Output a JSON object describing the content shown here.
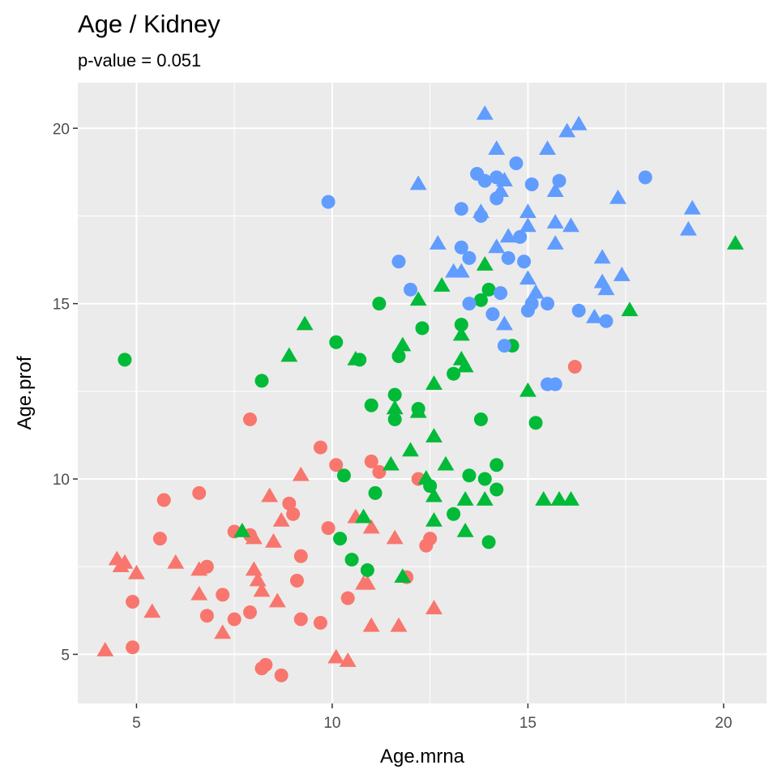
{
  "chart_data": {
    "type": "scatter",
    "title": "Age / Kidney",
    "subtitle": "p-value = 0.051",
    "xlabel": "Age.mrna",
    "ylabel": "Age.prof",
    "xlim": [
      3.5,
      21.1
    ],
    "ylim": [
      3.6,
      21.3
    ],
    "x_ticks": [
      5,
      10,
      15,
      20
    ],
    "y_ticks": [
      5,
      10,
      15,
      20
    ],
    "grid": true,
    "legend": "none",
    "panel_color": "#EBEBEB",
    "grid_color": "#FFFFFF",
    "series": [
      {
        "color": "#F8766D",
        "points": [
          {
            "x": 4.2,
            "y": 5.1,
            "shape": "triangle"
          },
          {
            "x": 4.5,
            "y": 7.7,
            "shape": "triangle"
          },
          {
            "x": 4.6,
            "y": 7.5,
            "shape": "triangle"
          },
          {
            "x": 4.7,
            "y": 7.6,
            "shape": "triangle"
          },
          {
            "x": 4.9,
            "y": 6.5,
            "shape": "circle"
          },
          {
            "x": 4.9,
            "y": 5.2,
            "shape": "circle"
          },
          {
            "x": 5.0,
            "y": 7.3,
            "shape": "triangle"
          },
          {
            "x": 5.4,
            "y": 6.2,
            "shape": "triangle"
          },
          {
            "x": 5.6,
            "y": 8.3,
            "shape": "circle"
          },
          {
            "x": 5.7,
            "y": 9.4,
            "shape": "circle"
          },
          {
            "x": 6.0,
            "y": 7.6,
            "shape": "triangle"
          },
          {
            "x": 6.6,
            "y": 7.4,
            "shape": "triangle"
          },
          {
            "x": 6.6,
            "y": 6.7,
            "shape": "triangle"
          },
          {
            "x": 6.6,
            "y": 9.6,
            "shape": "circle"
          },
          {
            "x": 6.8,
            "y": 7.5,
            "shape": "circle"
          },
          {
            "x": 6.8,
            "y": 6.1,
            "shape": "circle"
          },
          {
            "x": 7.2,
            "y": 6.7,
            "shape": "circle"
          },
          {
            "x": 7.2,
            "y": 5.6,
            "shape": "triangle"
          },
          {
            "x": 7.5,
            "y": 8.5,
            "shape": "circle"
          },
          {
            "x": 7.5,
            "y": 6.0,
            "shape": "circle"
          },
          {
            "x": 7.9,
            "y": 11.7,
            "shape": "circle"
          },
          {
            "x": 7.9,
            "y": 8.4,
            "shape": "circle"
          },
          {
            "x": 7.9,
            "y": 6.2,
            "shape": "circle"
          },
          {
            "x": 8.0,
            "y": 8.3,
            "shape": "triangle"
          },
          {
            "x": 8.0,
            "y": 7.4,
            "shape": "triangle"
          },
          {
            "x": 8.1,
            "y": 7.1,
            "shape": "triangle"
          },
          {
            "x": 8.2,
            "y": 6.8,
            "shape": "triangle"
          },
          {
            "x": 8.2,
            "y": 4.6,
            "shape": "circle"
          },
          {
            "x": 8.3,
            "y": 4.7,
            "shape": "circle"
          },
          {
            "x": 8.4,
            "y": 9.5,
            "shape": "triangle"
          },
          {
            "x": 8.5,
            "y": 8.2,
            "shape": "triangle"
          },
          {
            "x": 8.6,
            "y": 6.5,
            "shape": "triangle"
          },
          {
            "x": 8.7,
            "y": 8.8,
            "shape": "triangle"
          },
          {
            "x": 8.7,
            "y": 4.4,
            "shape": "circle"
          },
          {
            "x": 8.9,
            "y": 9.3,
            "shape": "circle"
          },
          {
            "x": 9.0,
            "y": 9.0,
            "shape": "circle"
          },
          {
            "x": 9.1,
            "y": 7.1,
            "shape": "circle"
          },
          {
            "x": 9.2,
            "y": 10.1,
            "shape": "triangle"
          },
          {
            "x": 9.2,
            "y": 7.8,
            "shape": "circle"
          },
          {
            "x": 9.2,
            "y": 6.0,
            "shape": "circle"
          },
          {
            "x": 9.7,
            "y": 10.9,
            "shape": "circle"
          },
          {
            "x": 9.7,
            "y": 5.9,
            "shape": "circle"
          },
          {
            "x": 9.9,
            "y": 8.6,
            "shape": "circle"
          },
          {
            "x": 10.1,
            "y": 10.4,
            "shape": "circle"
          },
          {
            "x": 10.1,
            "y": 4.9,
            "shape": "triangle"
          },
          {
            "x": 10.4,
            "y": 4.8,
            "shape": "triangle"
          },
          {
            "x": 10.4,
            "y": 6.6,
            "shape": "circle"
          },
          {
            "x": 10.6,
            "y": 8.9,
            "shape": "triangle"
          },
          {
            "x": 10.8,
            "y": 7.0,
            "shape": "triangle"
          },
          {
            "x": 10.9,
            "y": 7.0,
            "shape": "triangle"
          },
          {
            "x": 11.0,
            "y": 8.6,
            "shape": "triangle"
          },
          {
            "x": 11.0,
            "y": 5.8,
            "shape": "triangle"
          },
          {
            "x": 11.0,
            "y": 10.5,
            "shape": "circle"
          },
          {
            "x": 11.2,
            "y": 10.2,
            "shape": "circle"
          },
          {
            "x": 11.6,
            "y": 8.3,
            "shape": "triangle"
          },
          {
            "x": 11.7,
            "y": 5.8,
            "shape": "triangle"
          },
          {
            "x": 11.9,
            "y": 7.2,
            "shape": "circle"
          },
          {
            "x": 12.2,
            "y": 10.0,
            "shape": "circle"
          },
          {
            "x": 12.4,
            "y": 8.1,
            "shape": "circle"
          },
          {
            "x": 12.5,
            "y": 8.3,
            "shape": "circle"
          },
          {
            "x": 12.6,
            "y": 6.3,
            "shape": "triangle"
          },
          {
            "x": 16.2,
            "y": 13.2,
            "shape": "circle"
          }
        ]
      },
      {
        "color": "#00BA38",
        "points": [
          {
            "x": 4.7,
            "y": 13.4,
            "shape": "circle"
          },
          {
            "x": 7.7,
            "y": 8.5,
            "shape": "triangle"
          },
          {
            "x": 8.2,
            "y": 12.8,
            "shape": "circle"
          },
          {
            "x": 8.9,
            "y": 13.5,
            "shape": "triangle"
          },
          {
            "x": 9.3,
            "y": 14.4,
            "shape": "triangle"
          },
          {
            "x": 10.1,
            "y": 13.9,
            "shape": "circle"
          },
          {
            "x": 10.2,
            "y": 8.3,
            "shape": "circle"
          },
          {
            "x": 10.3,
            "y": 10.1,
            "shape": "circle"
          },
          {
            "x": 10.5,
            "y": 7.7,
            "shape": "circle"
          },
          {
            "x": 10.6,
            "y": 13.4,
            "shape": "triangle"
          },
          {
            "x": 10.7,
            "y": 13.4,
            "shape": "circle"
          },
          {
            "x": 10.8,
            "y": 8.9,
            "shape": "triangle"
          },
          {
            "x": 10.9,
            "y": 7.4,
            "shape": "circle"
          },
          {
            "x": 11.0,
            "y": 12.1,
            "shape": "circle"
          },
          {
            "x": 11.1,
            "y": 9.6,
            "shape": "circle"
          },
          {
            "x": 11.2,
            "y": 15.0,
            "shape": "circle"
          },
          {
            "x": 11.5,
            "y": 10.4,
            "shape": "triangle"
          },
          {
            "x": 11.6,
            "y": 12.0,
            "shape": "triangle"
          },
          {
            "x": 11.6,
            "y": 12.4,
            "shape": "circle"
          },
          {
            "x": 11.6,
            "y": 11.7,
            "shape": "circle"
          },
          {
            "x": 11.7,
            "y": 13.5,
            "shape": "circle"
          },
          {
            "x": 11.8,
            "y": 13.8,
            "shape": "triangle"
          },
          {
            "x": 11.8,
            "y": 7.2,
            "shape": "triangle"
          },
          {
            "x": 12.0,
            "y": 10.8,
            "shape": "triangle"
          },
          {
            "x": 12.2,
            "y": 12.0,
            "shape": "circle"
          },
          {
            "x": 12.2,
            "y": 15.1,
            "shape": "triangle"
          },
          {
            "x": 12.2,
            "y": 11.9,
            "shape": "triangle"
          },
          {
            "x": 12.3,
            "y": 14.3,
            "shape": "circle"
          },
          {
            "x": 12.4,
            "y": 10.0,
            "shape": "triangle"
          },
          {
            "x": 12.5,
            "y": 9.8,
            "shape": "circle"
          },
          {
            "x": 12.6,
            "y": 9.5,
            "shape": "triangle"
          },
          {
            "x": 12.6,
            "y": 8.8,
            "shape": "triangle"
          },
          {
            "x": 12.6,
            "y": 12.7,
            "shape": "triangle"
          },
          {
            "x": 12.6,
            "y": 11.2,
            "shape": "triangle"
          },
          {
            "x": 12.8,
            "y": 15.5,
            "shape": "triangle"
          },
          {
            "x": 12.9,
            "y": 10.4,
            "shape": "triangle"
          },
          {
            "x": 13.1,
            "y": 13.0,
            "shape": "circle"
          },
          {
            "x": 13.1,
            "y": 9.0,
            "shape": "circle"
          },
          {
            "x": 13.3,
            "y": 14.4,
            "shape": "circle"
          },
          {
            "x": 13.3,
            "y": 14.1,
            "shape": "triangle"
          },
          {
            "x": 13.3,
            "y": 13.4,
            "shape": "triangle"
          },
          {
            "x": 13.4,
            "y": 13.2,
            "shape": "triangle"
          },
          {
            "x": 13.4,
            "y": 9.4,
            "shape": "triangle"
          },
          {
            "x": 13.4,
            "y": 8.5,
            "shape": "triangle"
          },
          {
            "x": 13.5,
            "y": 10.1,
            "shape": "circle"
          },
          {
            "x": 13.8,
            "y": 15.1,
            "shape": "circle"
          },
          {
            "x": 13.8,
            "y": 11.7,
            "shape": "circle"
          },
          {
            "x": 13.9,
            "y": 16.1,
            "shape": "triangle"
          },
          {
            "x": 13.9,
            "y": 10.0,
            "shape": "circle"
          },
          {
            "x": 13.9,
            "y": 9.4,
            "shape": "triangle"
          },
          {
            "x": 14.0,
            "y": 15.4,
            "shape": "circle"
          },
          {
            "x": 14.0,
            "y": 8.2,
            "shape": "circle"
          },
          {
            "x": 14.2,
            "y": 9.7,
            "shape": "circle"
          },
          {
            "x": 14.2,
            "y": 10.4,
            "shape": "circle"
          },
          {
            "x": 14.6,
            "y": 13.8,
            "shape": "circle"
          },
          {
            "x": 15.0,
            "y": 12.5,
            "shape": "triangle"
          },
          {
            "x": 15.2,
            "y": 11.6,
            "shape": "circle"
          },
          {
            "x": 15.4,
            "y": 9.4,
            "shape": "triangle"
          },
          {
            "x": 15.8,
            "y": 9.4,
            "shape": "triangle"
          },
          {
            "x": 16.1,
            "y": 9.4,
            "shape": "triangle"
          },
          {
            "x": 17.6,
            "y": 14.8,
            "shape": "triangle"
          },
          {
            "x": 20.3,
            "y": 16.7,
            "shape": "triangle"
          }
        ]
      },
      {
        "color": "#619CFF",
        "points": [
          {
            "x": 9.9,
            "y": 17.9,
            "shape": "circle"
          },
          {
            "x": 11.7,
            "y": 16.2,
            "shape": "circle"
          },
          {
            "x": 12.0,
            "y": 15.4,
            "shape": "circle"
          },
          {
            "x": 12.2,
            "y": 18.4,
            "shape": "triangle"
          },
          {
            "x": 12.7,
            "y": 16.7,
            "shape": "triangle"
          },
          {
            "x": 13.1,
            "y": 15.9,
            "shape": "triangle"
          },
          {
            "x": 13.3,
            "y": 17.7,
            "shape": "circle"
          },
          {
            "x": 13.3,
            "y": 16.6,
            "shape": "circle"
          },
          {
            "x": 13.3,
            "y": 15.9,
            "shape": "triangle"
          },
          {
            "x": 13.5,
            "y": 16.3,
            "shape": "circle"
          },
          {
            "x": 13.5,
            "y": 15.0,
            "shape": "circle"
          },
          {
            "x": 13.7,
            "y": 18.7,
            "shape": "circle"
          },
          {
            "x": 13.8,
            "y": 17.5,
            "shape": "circle"
          },
          {
            "x": 13.8,
            "y": 17.6,
            "shape": "triangle"
          },
          {
            "x": 13.9,
            "y": 18.5,
            "shape": "circle"
          },
          {
            "x": 13.9,
            "y": 20.4,
            "shape": "triangle"
          },
          {
            "x": 14.1,
            "y": 14.7,
            "shape": "circle"
          },
          {
            "x": 14.2,
            "y": 19.4,
            "shape": "triangle"
          },
          {
            "x": 14.2,
            "y": 18.6,
            "shape": "circle"
          },
          {
            "x": 14.2,
            "y": 18.0,
            "shape": "circle"
          },
          {
            "x": 14.2,
            "y": 16.6,
            "shape": "triangle"
          },
          {
            "x": 14.3,
            "y": 15.3,
            "shape": "circle"
          },
          {
            "x": 14.3,
            "y": 18.2,
            "shape": "triangle"
          },
          {
            "x": 14.4,
            "y": 18.5,
            "shape": "triangle"
          },
          {
            "x": 14.4,
            "y": 14.4,
            "shape": "triangle"
          },
          {
            "x": 14.4,
            "y": 13.8,
            "shape": "circle"
          },
          {
            "x": 14.5,
            "y": 16.3,
            "shape": "circle"
          },
          {
            "x": 14.5,
            "y": 16.9,
            "shape": "triangle"
          },
          {
            "x": 14.7,
            "y": 19.0,
            "shape": "circle"
          },
          {
            "x": 14.8,
            "y": 16.9,
            "shape": "circle"
          },
          {
            "x": 14.9,
            "y": 16.2,
            "shape": "circle"
          },
          {
            "x": 15.0,
            "y": 17.6,
            "shape": "triangle"
          },
          {
            "x": 15.0,
            "y": 17.2,
            "shape": "triangle"
          },
          {
            "x": 15.0,
            "y": 15.7,
            "shape": "triangle"
          },
          {
            "x": 15.0,
            "y": 14.8,
            "shape": "circle"
          },
          {
            "x": 15.1,
            "y": 18.4,
            "shape": "circle"
          },
          {
            "x": 15.1,
            "y": 15.0,
            "shape": "circle"
          },
          {
            "x": 15.2,
            "y": 15.3,
            "shape": "triangle"
          },
          {
            "x": 15.5,
            "y": 19.4,
            "shape": "triangle"
          },
          {
            "x": 15.5,
            "y": 15.0,
            "shape": "circle"
          },
          {
            "x": 15.5,
            "y": 12.7,
            "shape": "circle"
          },
          {
            "x": 15.7,
            "y": 12.7,
            "shape": "circle"
          },
          {
            "x": 15.7,
            "y": 17.3,
            "shape": "triangle"
          },
          {
            "x": 15.7,
            "y": 16.7,
            "shape": "triangle"
          },
          {
            "x": 15.7,
            "y": 18.2,
            "shape": "triangle"
          },
          {
            "x": 15.8,
            "y": 18.5,
            "shape": "circle"
          },
          {
            "x": 16.0,
            "y": 19.9,
            "shape": "triangle"
          },
          {
            "x": 16.1,
            "y": 17.2,
            "shape": "triangle"
          },
          {
            "x": 16.3,
            "y": 20.1,
            "shape": "triangle"
          },
          {
            "x": 16.3,
            "y": 14.8,
            "shape": "circle"
          },
          {
            "x": 16.7,
            "y": 14.6,
            "shape": "triangle"
          },
          {
            "x": 16.9,
            "y": 16.3,
            "shape": "triangle"
          },
          {
            "x": 16.9,
            "y": 15.6,
            "shape": "triangle"
          },
          {
            "x": 17.0,
            "y": 15.4,
            "shape": "triangle"
          },
          {
            "x": 17.0,
            "y": 14.5,
            "shape": "circle"
          },
          {
            "x": 17.3,
            "y": 18.0,
            "shape": "triangle"
          },
          {
            "x": 17.4,
            "y": 15.8,
            "shape": "triangle"
          },
          {
            "x": 18.0,
            "y": 18.6,
            "shape": "circle"
          },
          {
            "x": 19.1,
            "y": 17.1,
            "shape": "triangle"
          },
          {
            "x": 19.2,
            "y": 17.7,
            "shape": "triangle"
          }
        ]
      }
    ]
  }
}
